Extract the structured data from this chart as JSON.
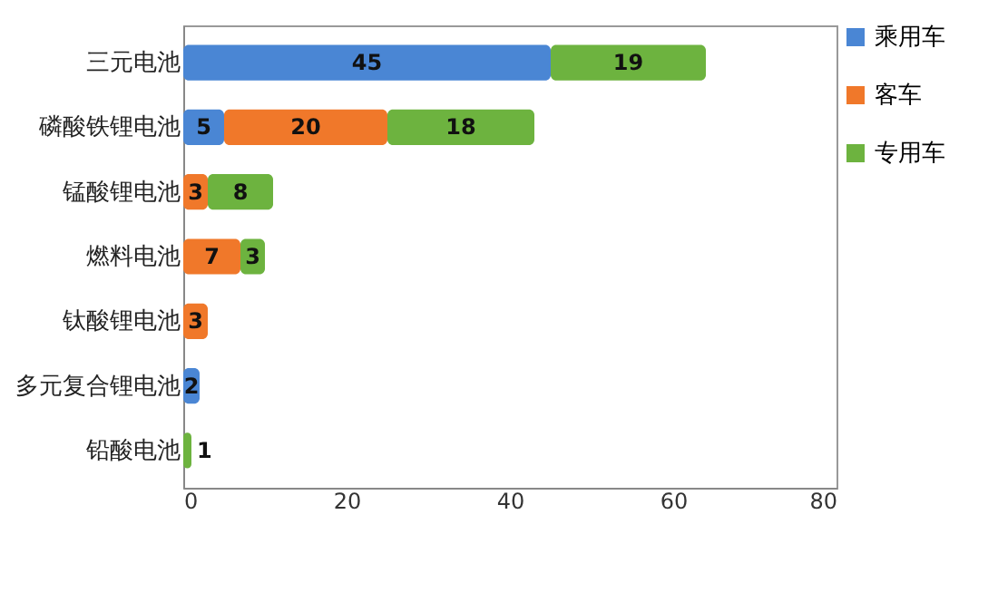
{
  "chart_data": {
    "type": "bar",
    "orientation": "horizontal",
    "stacked": true,
    "data_labels": true,
    "legend": "right",
    "categories": [
      "三元电池",
      "磷酸铁锂电池",
      "锰酸锂电池",
      "燃料电池",
      "钛酸锂电池",
      "多元复合锂电池",
      "铅酸电池"
    ],
    "series": [
      {
        "name": "乘用车",
        "color": "#4a86d4",
        "values": [
          45,
          5,
          null,
          null,
          null,
          2,
          null
        ]
      },
      {
        "name": "客车",
        "color": "#f0782a",
        "values": [
          null,
          20,
          3,
          7,
          3,
          null,
          null
        ]
      },
      {
        "name": "专用车",
        "color": "#6db33f",
        "values": [
          19,
          18,
          8,
          3,
          null,
          null,
          1
        ]
      }
    ],
    "xlim": [
      0,
      80
    ],
    "xticks": [
      0,
      20,
      40,
      60,
      80
    ],
    "grid": false
  }
}
